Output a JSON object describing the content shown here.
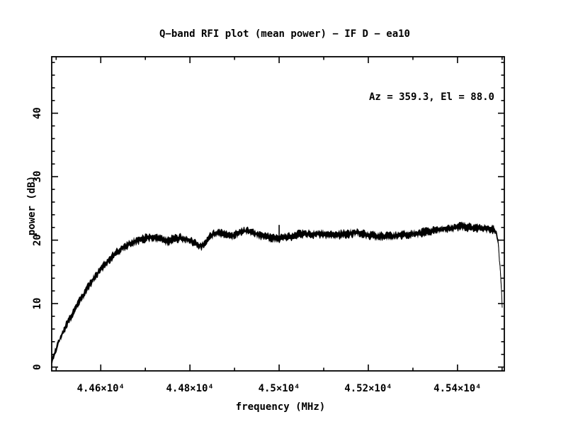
{
  "page": {
    "background_color": "#ffffff",
    "foreground_color": "#000000"
  },
  "title": "Q−band RFI plot (mean power) − IF D − ea10",
  "annotation": {
    "text": "Az = 359.3, El = 88.0",
    "az": 359.3,
    "el": 88.0
  },
  "chart_data": {
    "type": "line",
    "title": "Q−band RFI plot (mean power) − IF D − ea10",
    "xlabel": "frequency (MHz)",
    "ylabel": "power (dB)",
    "xlim": [
      44490,
      45505
    ],
    "ylim": [
      -0.6,
      48.9
    ],
    "grid": false,
    "legend": "none",
    "x_major_ticks": [
      44600,
      44800,
      45000,
      45200,
      45400
    ],
    "x_tick_labels": [
      "4.46×10⁴",
      "4.48×10⁴",
      "4.5×10⁴",
      "4.52×10⁴",
      "4.54×10⁴"
    ],
    "x_minor_step": 100,
    "y_major_ticks": [
      0,
      10,
      20,
      30,
      40
    ],
    "y_tick_labels": [
      "0",
      "10",
      "20",
      "30",
      "40"
    ],
    "y_minor_step": 2,
    "line_color": "#000000",
    "series": [
      {
        "name": "mean power",
        "noise_db": 0.35,
        "points": [
          [
            44490,
            1.0
          ],
          [
            44498,
            2.6
          ],
          [
            44506,
            4.0
          ],
          [
            44515,
            5.4
          ],
          [
            44524,
            6.7
          ],
          [
            44533,
            7.9
          ],
          [
            44542,
            9.1
          ],
          [
            44551,
            10.2
          ],
          [
            44560,
            11.2
          ],
          [
            44570,
            12.4
          ],
          [
            44580,
            13.5
          ],
          [
            44590,
            14.5
          ],
          [
            44600,
            15.4
          ],
          [
            44610,
            16.2
          ],
          [
            44620,
            17.0
          ],
          [
            44630,
            17.7
          ],
          [
            44640,
            18.3
          ],
          [
            44650,
            18.8
          ],
          [
            44660,
            19.2
          ],
          [
            44670,
            19.6
          ],
          [
            44680,
            19.9
          ],
          [
            44690,
            20.1
          ],
          [
            44700,
            20.3
          ],
          [
            44710,
            20.4
          ],
          [
            44720,
            20.5
          ],
          [
            44732,
            20.2
          ],
          [
            44742,
            19.9
          ],
          [
            44750,
            19.8
          ],
          [
            44758,
            20.0
          ],
          [
            44768,
            20.3
          ],
          [
            44778,
            20.4
          ],
          [
            44788,
            20.2
          ],
          [
            44798,
            20.0
          ],
          [
            44808,
            19.6
          ],
          [
            44818,
            19.2
          ],
          [
            44826,
            19.1
          ],
          [
            44834,
            19.5
          ],
          [
            44842,
            20.3
          ],
          [
            44852,
            20.9
          ],
          [
            44860,
            21.1
          ],
          [
            44870,
            21.0
          ],
          [
            44880,
            20.8
          ],
          [
            44890,
            20.6
          ],
          [
            44900,
            20.8
          ],
          [
            44910,
            21.2
          ],
          [
            44920,
            21.4
          ],
          [
            44930,
            21.4
          ],
          [
            44940,
            21.2
          ],
          [
            44952,
            20.9
          ],
          [
            44964,
            20.6
          ],
          [
            44977,
            20.4
          ],
          [
            44990,
            20.3
          ],
          [
            45003,
            20.3
          ],
          [
            45016,
            20.5
          ],
          [
            45030,
            20.7
          ],
          [
            45045,
            20.9
          ],
          [
            45060,
            21.0
          ],
          [
            45075,
            20.9
          ],
          [
            45090,
            21.0
          ],
          [
            45105,
            20.9
          ],
          [
            45120,
            20.8
          ],
          [
            45135,
            20.9
          ],
          [
            45150,
            21.0
          ],
          [
            45163,
            21.1
          ],
          [
            45175,
            21.3
          ],
          [
            45185,
            21.0
          ],
          [
            45198,
            20.8
          ],
          [
            45212,
            20.7
          ],
          [
            45227,
            20.6
          ],
          [
            45242,
            20.7
          ],
          [
            45258,
            20.7
          ],
          [
            45274,
            20.8
          ],
          [
            45290,
            20.9
          ],
          [
            45306,
            21.0
          ],
          [
            45322,
            21.2
          ],
          [
            45338,
            21.4
          ],
          [
            45354,
            21.6
          ],
          [
            45370,
            21.8
          ],
          [
            45386,
            21.9
          ],
          [
            45400,
            22.0
          ],
          [
            45413,
            22.2
          ],
          [
            45424,
            22.0
          ],
          [
            45434,
            21.9
          ],
          [
            45444,
            22.0
          ],
          [
            45454,
            21.9
          ],
          [
            45464,
            21.8
          ],
          [
            45474,
            21.7
          ],
          [
            45482,
            21.6
          ],
          [
            45487,
            21.2
          ],
          [
            45490,
            20.4
          ],
          [
            45493,
            18.0
          ],
          [
            45496,
            15.0
          ],
          [
            45499,
            11.5
          ],
          [
            45501,
            8.5
          ]
        ]
      }
    ],
    "spike": {
      "x": 45000,
      "top_db": 22.4
    }
  }
}
